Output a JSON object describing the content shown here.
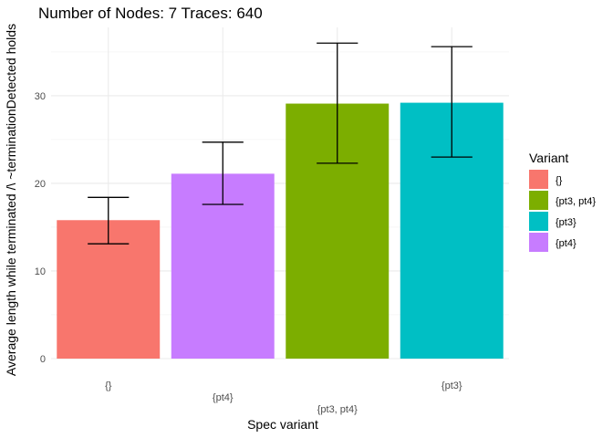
{
  "chart_data": {
    "type": "bar",
    "title": "Number of Nodes:  7 Traces: 640",
    "xlabel": "Spec variant",
    "ylabel": "Average length while terminated /\\ ~terminationDetected holds",
    "categories": [
      "{}",
      "{pt4}",
      "{pt3, pt4}",
      "{pt3}"
    ],
    "values": [
      15.8,
      21.1,
      29.1,
      29.2
    ],
    "error_low": [
      13.1,
      17.6,
      22.3,
      23.0
    ],
    "error_high": [
      18.4,
      24.7,
      36.0,
      35.6
    ],
    "yticks": [
      0,
      10,
      20,
      30
    ],
    "ylim": [
      0,
      37.8
    ],
    "grid": true,
    "bar_colors": [
      "#F8766D",
      "#C77CFF",
      "#7CAE00",
      "#00BFC4"
    ],
    "legend": {
      "title": "Variant",
      "position": "right",
      "entries": [
        {
          "label": "{}",
          "color": "#F8766D"
        },
        {
          "label": "{pt3, pt4}",
          "color": "#7CAE00"
        },
        {
          "label": "{pt3}",
          "color": "#00BFC4"
        },
        {
          "label": "{pt4}",
          "color": "#C77CFF"
        }
      ]
    }
  }
}
